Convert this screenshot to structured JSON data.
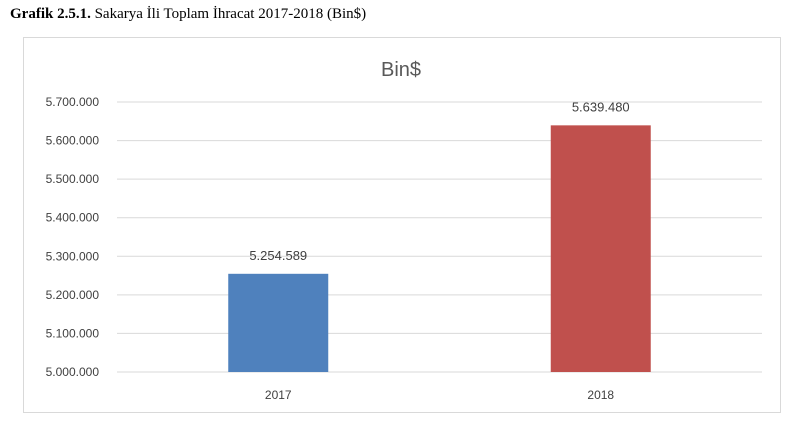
{
  "caption": {
    "bold_prefix": "Grafik 2.5.1.",
    "text": " Sakarya İli Toplam İhracat 2017-2018 (Bin$)"
  },
  "chart_data": {
    "type": "bar",
    "title": "Bin$",
    "categories": [
      "2017",
      "2018"
    ],
    "values": [
      5254589,
      5639480
    ],
    "data_labels": [
      "5.254.589",
      "5.639.480"
    ],
    "colors": [
      "#4f81bd",
      "#c0504d"
    ],
    "ylim": [
      5000000,
      5700000
    ],
    "yticks": [
      5000000,
      5100000,
      5200000,
      5300000,
      5400000,
      5500000,
      5600000,
      5700000
    ],
    "ytick_labels": [
      "5.000.000",
      "5.100.000",
      "5.200.000",
      "5.300.000",
      "5.400.000",
      "5.500.000",
      "5.600.000",
      "5.700.000"
    ],
    "grid": true,
    "gridline_color": "#d9d9d9",
    "xlabel": "",
    "ylabel": ""
  }
}
